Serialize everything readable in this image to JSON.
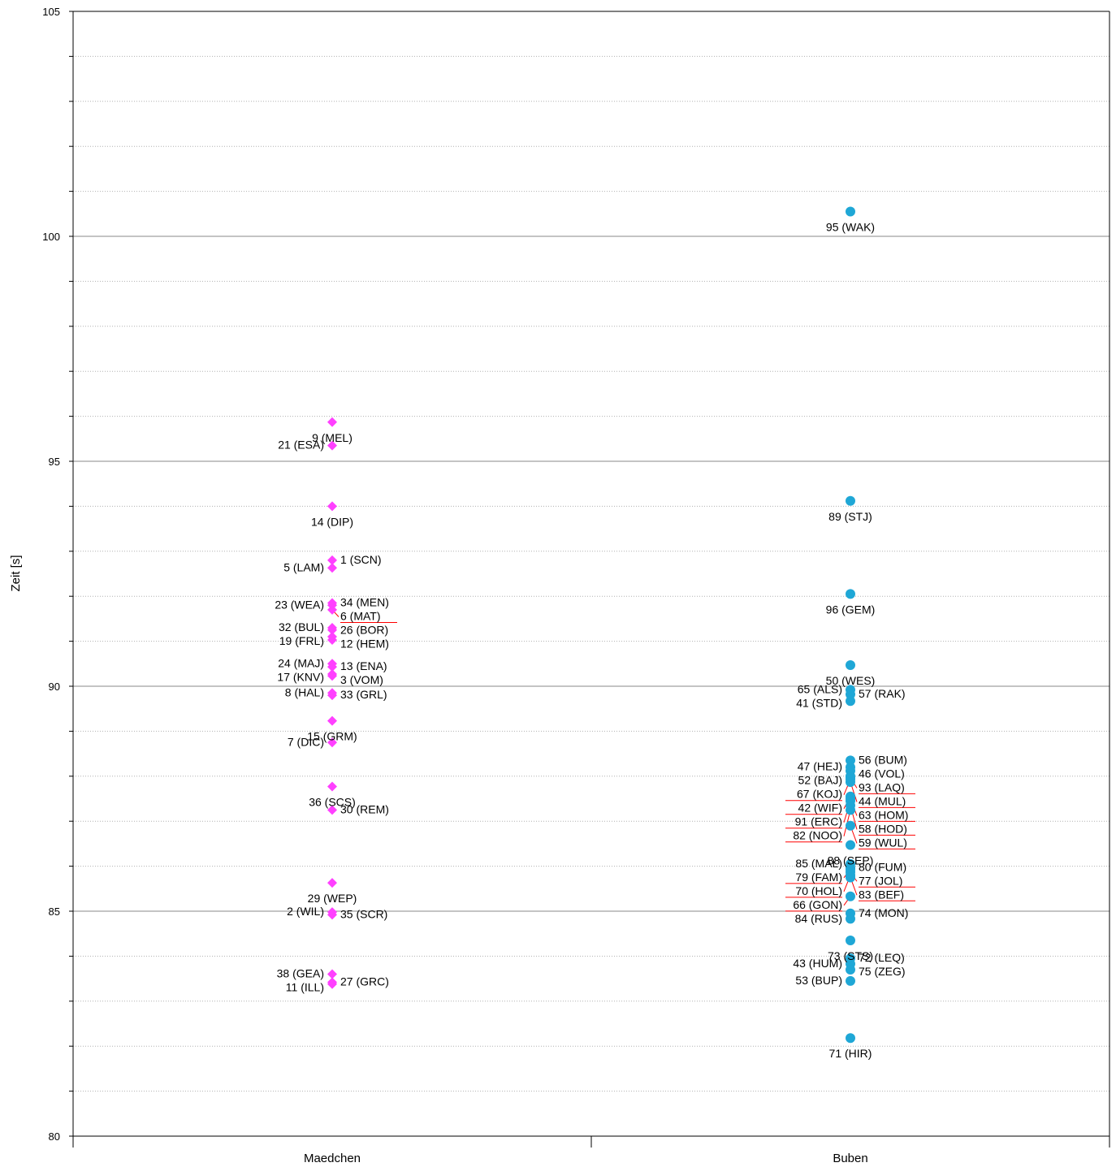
{
  "chart_data": {
    "type": "scatter",
    "title": "",
    "xlabel": "",
    "ylabel": "Zeit [s]",
    "ylim": [
      80,
      105
    ],
    "ytick_labels": [
      "80",
      "85",
      "90",
      "95",
      "100",
      "105"
    ],
    "grid": true,
    "legend": "none",
    "categories": [
      "Maedchen",
      "Buben"
    ],
    "colors": {
      "Maedchen": "#ff40ff",
      "Buben": "#1fa7d6",
      "connector": "#ff0000",
      "grid_major": "#8a8a8a",
      "grid_minor": "#b0b0b0"
    },
    "markers": {
      "Maedchen": "diamond",
      "Buben": "circle"
    },
    "points": [
      {
        "category": "Maedchen",
        "label": "9 (MEL)",
        "y": 95.87
      },
      {
        "category": "Maedchen",
        "label": "21 (ESA)",
        "y": 95.35
      },
      {
        "category": "Maedchen",
        "label": "14 (DIP)",
        "y": 94.0
      },
      {
        "category": "Maedchen",
        "label": "1 (SCN)",
        "y": 92.8
      },
      {
        "category": "Maedchen",
        "label": "5 (LAM)",
        "y": 92.63
      },
      {
        "category": "Maedchen",
        "label": "34 (MEN)",
        "y": 91.85
      },
      {
        "category": "Maedchen",
        "label": "23 (WEA)",
        "y": 91.8
      },
      {
        "category": "Maedchen",
        "label": "6 (MAT)",
        "y": 91.7
      },
      {
        "category": "Maedchen",
        "label": "32 (BUL)",
        "y": 91.3
      },
      {
        "category": "Maedchen",
        "label": "26 (BOR)",
        "y": 91.25
      },
      {
        "category": "Maedchen",
        "label": "19 (FRL)",
        "y": 91.1
      },
      {
        "category": "Maedchen",
        "label": "12 (HEM)",
        "y": 91.03
      },
      {
        "category": "Maedchen",
        "label": "24 (MAJ)",
        "y": 90.5
      },
      {
        "category": "Maedchen",
        "label": "13 (ENA)",
        "y": 90.43
      },
      {
        "category": "Maedchen",
        "label": "17 (KNV)",
        "y": 90.27
      },
      {
        "category": "Maedchen",
        "label": "3 (VOM)",
        "y": 90.23
      },
      {
        "category": "Maedchen",
        "label": "8 (HAL)",
        "y": 89.85
      },
      {
        "category": "Maedchen",
        "label": "33 (GRL)",
        "y": 89.8
      },
      {
        "category": "Maedchen",
        "label": "15 (GRM)",
        "y": 89.23
      },
      {
        "category": "Maedchen",
        "label": "7 (DIC)",
        "y": 88.75
      },
      {
        "category": "Maedchen",
        "label": "36 (SCS)",
        "y": 87.77
      },
      {
        "category": "Maedchen",
        "label": "30 (REM)",
        "y": 87.25
      },
      {
        "category": "Maedchen",
        "label": "29 (WEP)",
        "y": 85.63
      },
      {
        "category": "Maedchen",
        "label": "2 (WIL)",
        "y": 84.98
      },
      {
        "category": "Maedchen",
        "label": "35 (SCR)",
        "y": 84.92
      },
      {
        "category": "Maedchen",
        "label": "38 (GEA)",
        "y": 83.6
      },
      {
        "category": "Maedchen",
        "label": "27 (GRC)",
        "y": 83.42
      },
      {
        "category": "Maedchen",
        "label": "11 (ILL)",
        "y": 83.38
      },
      {
        "category": "Buben",
        "label": "95 (WAK)",
        "y": 100.55
      },
      {
        "category": "Buben",
        "label": "89 (STJ)",
        "y": 94.12
      },
      {
        "category": "Buben",
        "label": "96 (GEM)",
        "y": 92.05
      },
      {
        "category": "Buben",
        "label": "50 (WES)",
        "y": 90.47
      },
      {
        "category": "Buben",
        "label": "65 (ALS)",
        "y": 89.92
      },
      {
        "category": "Buben",
        "label": "57 (RAK)",
        "y": 89.82
      },
      {
        "category": "Buben",
        "label": "41 (STD)",
        "y": 89.67
      },
      {
        "category": "Buben",
        "label": "56 (BUM)",
        "y": 88.35
      },
      {
        "category": "Buben",
        "label": "47 (HEJ)",
        "y": 88.2
      },
      {
        "category": "Buben",
        "label": "46 (VOL)",
        "y": 88.12
      },
      {
        "category": "Buben",
        "label": "52 (BAJ)",
        "y": 88.0
      },
      {
        "category": "Buben",
        "label": "93 (LAQ)",
        "y": 87.97
      },
      {
        "category": "Buben",
        "label": "67 (KOJ)",
        "y": 87.93
      },
      {
        "category": "Buben",
        "label": "44 (MUL)",
        "y": 87.87
      },
      {
        "category": "Buben",
        "label": "42 (WIF)",
        "y": 87.55
      },
      {
        "category": "Buben",
        "label": "63 (HOM)",
        "y": 87.5
      },
      {
        "category": "Buben",
        "label": "91 (ERC)",
        "y": 87.45
      },
      {
        "category": "Buben",
        "label": "58 (HOD)",
        "y": 87.35
      },
      {
        "category": "Buben",
        "label": "82 (NOO)",
        "y": 87.25
      },
      {
        "category": "Buben",
        "label": "59 (WUL)",
        "y": 86.9
      },
      {
        "category": "Buben",
        "label": "88 (SEP)",
        "y": 86.47
      },
      {
        "category": "Buben",
        "label": "85 (MAL)",
        "y": 86.05
      },
      {
        "category": "Buben",
        "label": "80 (FUM)",
        "y": 85.97
      },
      {
        "category": "Buben",
        "label": "79 (FAM)",
        "y": 85.93
      },
      {
        "category": "Buben",
        "label": "77 (JOL)",
        "y": 85.87
      },
      {
        "category": "Buben",
        "label": "70 (HOL)",
        "y": 85.8
      },
      {
        "category": "Buben",
        "label": "83 (BEF)",
        "y": 85.75
      },
      {
        "category": "Buben",
        "label": "66 (GON)",
        "y": 85.33
      },
      {
        "category": "Buben",
        "label": "74 (MON)",
        "y": 84.95
      },
      {
        "category": "Buben",
        "label": "84 (RUS)",
        "y": 84.83
      },
      {
        "category": "Buben",
        "label": "73 (STS)",
        "y": 84.35
      },
      {
        "category": "Buben",
        "label": "72 (LEQ)",
        "y": 83.95
      },
      {
        "category": "Buben",
        "label": "43 (HUM)",
        "y": 83.83
      },
      {
        "category": "Buben",
        "label": "75 (ZEG)",
        "y": 83.7
      },
      {
        "category": "Buben",
        "label": "53 (BUP)",
        "y": 83.45
      },
      {
        "category": "Buben",
        "label": "71 (HIR)",
        "y": 82.18
      }
    ]
  }
}
